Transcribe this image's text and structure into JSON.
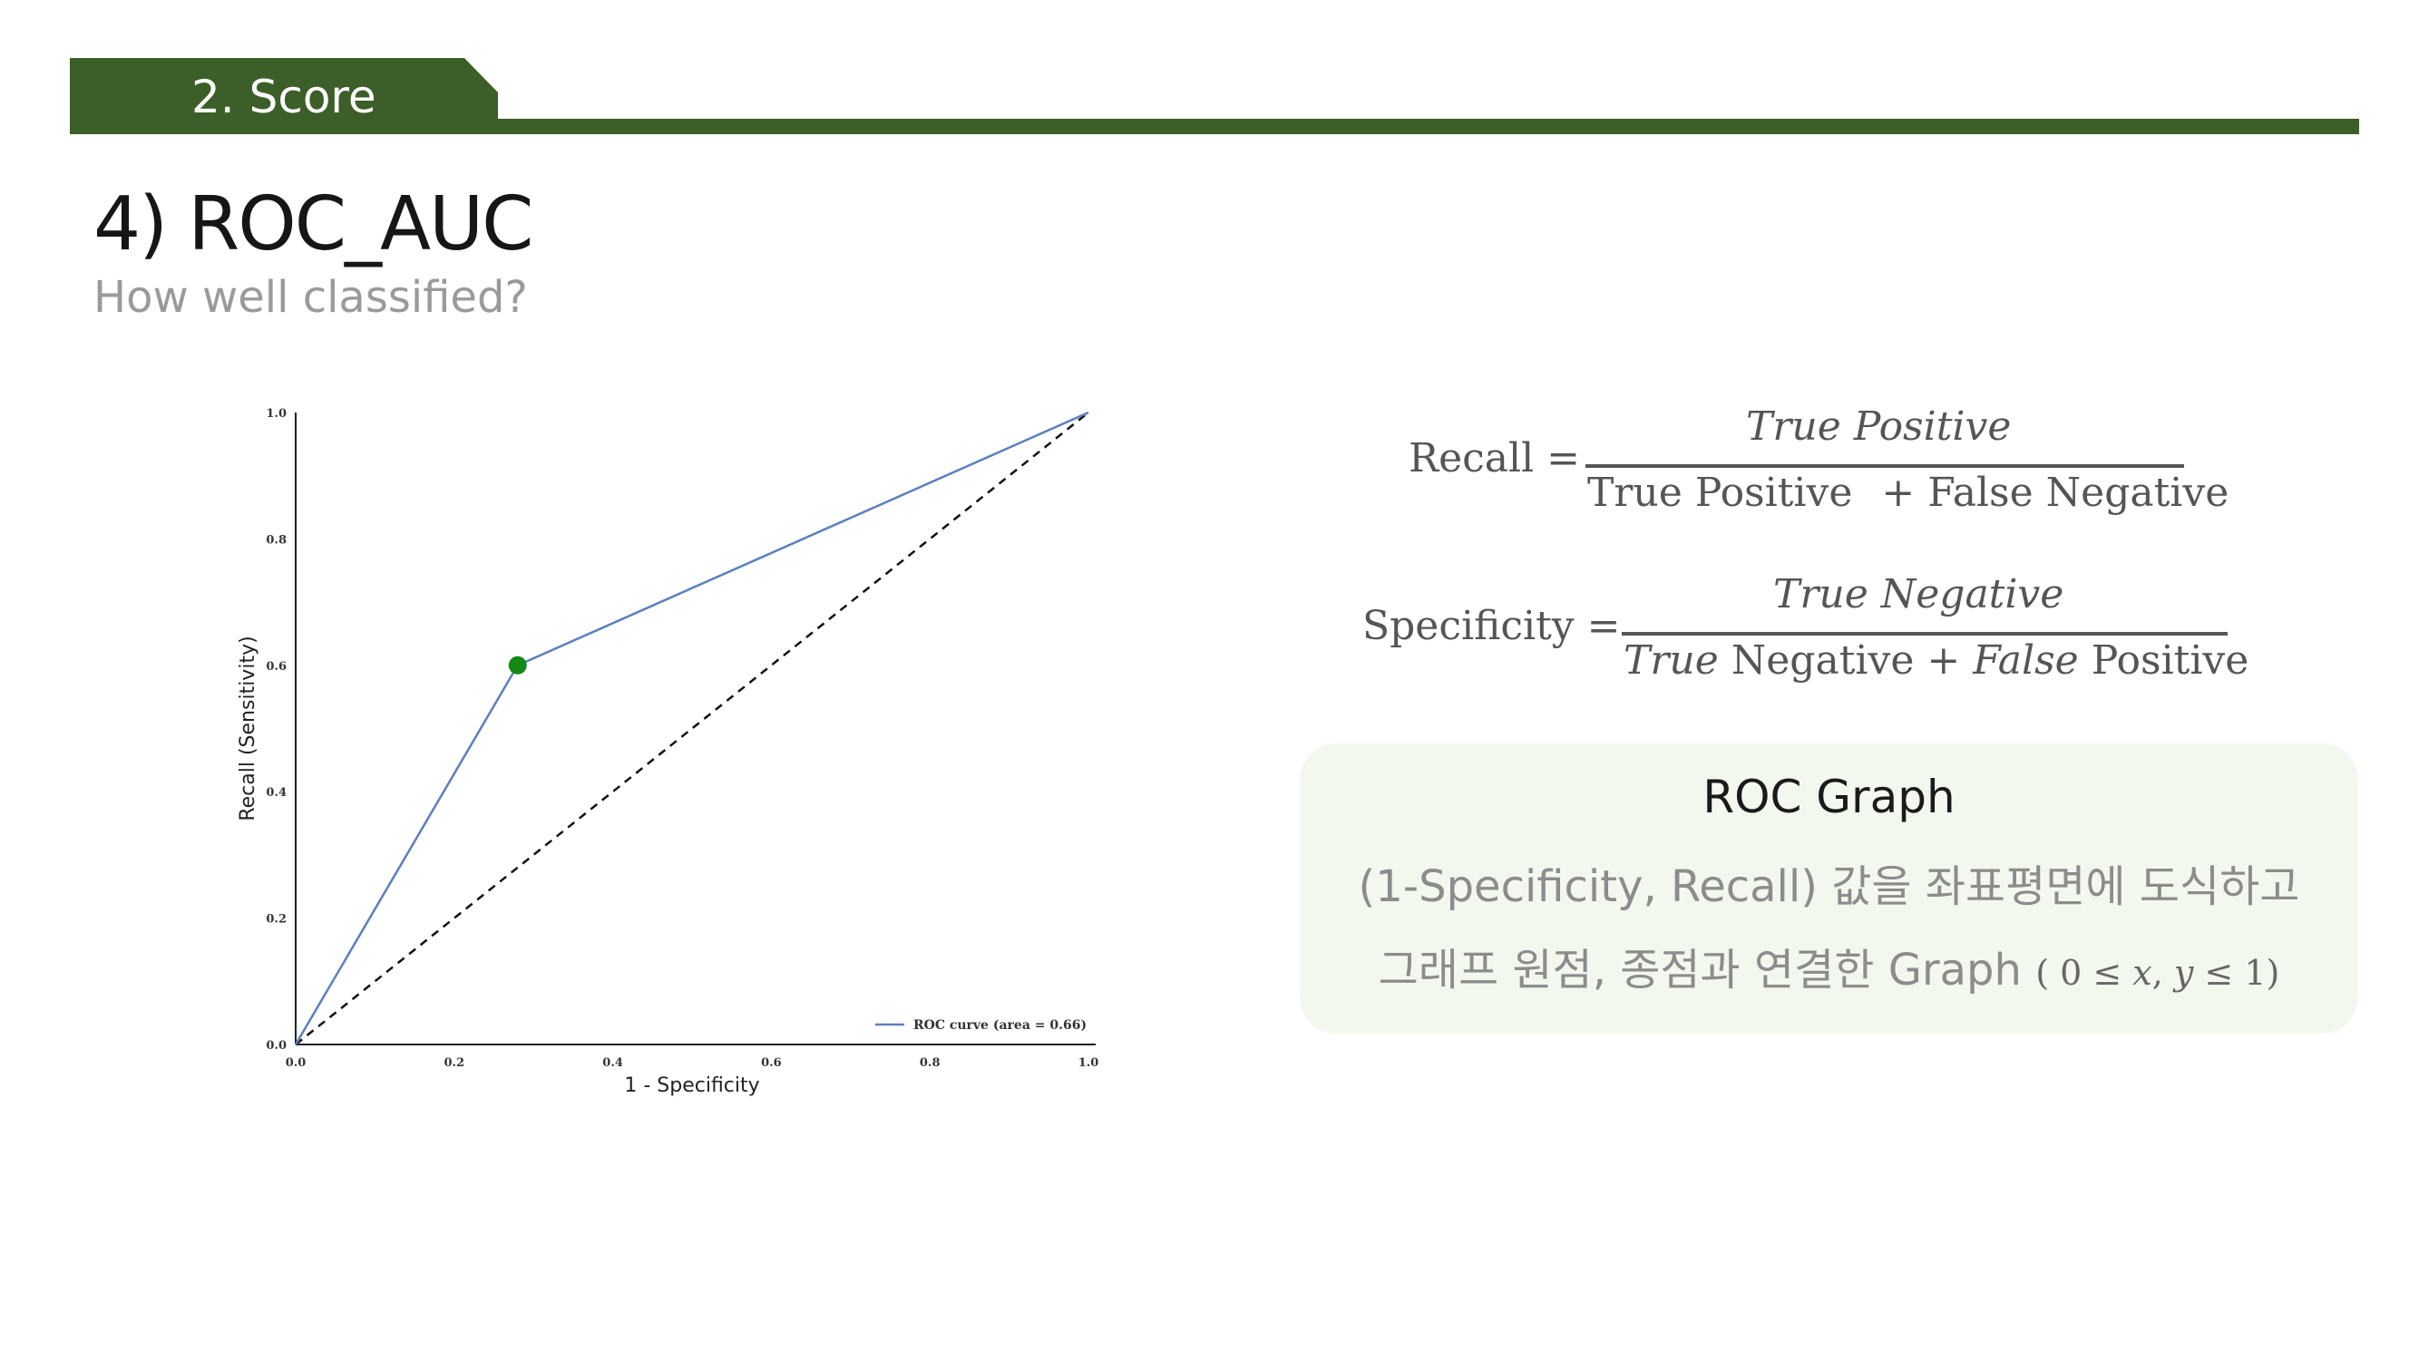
{
  "header": {
    "section_label": "2. Score",
    "color": "#3c5e28"
  },
  "title": "4) ROC_AUC",
  "subtitle": "How well classified?",
  "chart_data": {
    "type": "line",
    "xlabel": "1 - Specificity",
    "ylabel": "Recall (Sensitivity)",
    "xlim": [
      0.0,
      1.0
    ],
    "ylim": [
      0.0,
      1.0
    ],
    "x_ticks": [
      "0.0",
      "0.2",
      "0.4",
      "0.6",
      "0.8",
      "1.0"
    ],
    "y_ticks": [
      "0.0",
      "0.2",
      "0.4",
      "0.6",
      "0.8",
      "1.0"
    ],
    "series": [
      {
        "name": "ROC curve (area = 0.66)",
        "x": [
          0.0,
          0.28,
          1.0
        ],
        "y": [
          0.0,
          0.6,
          1.0
        ],
        "color": "#5b7fbf"
      }
    ],
    "baseline": {
      "x": [
        0.0,
        1.0
      ],
      "y": [
        0.0,
        1.0
      ],
      "style": "dashed",
      "color": "#111111"
    },
    "highlight_point": {
      "x": 0.28,
      "y": 0.6,
      "color": "#138a13"
    },
    "legend": "bottom-right",
    "grid": false
  },
  "formulas": {
    "recall": {
      "lhs": "Recall =",
      "numerator": "True Positive",
      "denominator_a": "True Positive",
      "denominator_op": "+ False Negative"
    },
    "specificity": {
      "lhs": "Specificity =",
      "numerator": "True Negative",
      "denominator_a_italic": "True",
      "denominator_a": "Negative +",
      "denominator_b_italic": "False",
      "denominator_b": "Positive"
    }
  },
  "roc_box": {
    "title": "ROC Graph",
    "line1": "(1-Specificity, Recall) 값을 좌표평면에 도식하고",
    "line2": "그래프 원점, 종점과 연결한 Graph",
    "range": "( 0  ≤ 𝑥,  𝑦 ≤ 1)",
    "background": "#f3f8ef"
  }
}
